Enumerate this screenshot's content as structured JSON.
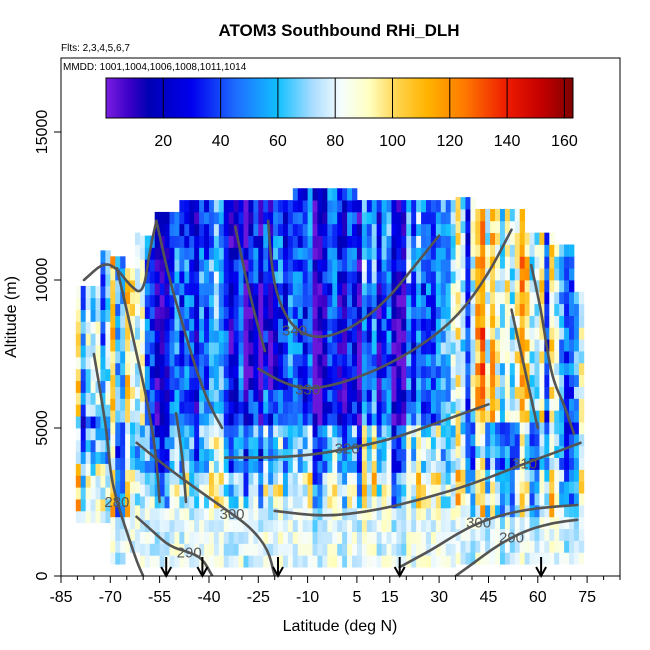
{
  "chart_data": {
    "type": "heatmap",
    "title": "ATOM3 Southbound RHi_DLH",
    "subtitle_flights": "Flts: 2,3,4,5,6,7",
    "subtitle_dates": "MMDD: 1001,1004,1006,1008,1011,1014",
    "xlabel": "Latitude (deg N)",
    "ylabel": "Altitude (m)",
    "xlim": [
      -85,
      85
    ],
    "ylim": [
      0,
      17500
    ],
    "x_ticks": [
      -85,
      -70,
      -55,
      -40,
      -25,
      -10,
      5,
      15,
      30,
      45,
      60,
      75
    ],
    "y_ticks": [
      0,
      5000,
      10000,
      15000
    ],
    "colorbar": {
      "min": 0,
      "max": 163,
      "ticks": [
        20,
        40,
        60,
        80,
        100,
        120,
        140,
        160
      ],
      "stops": [
        {
          "v": 0,
          "c": "#7a1fe0"
        },
        {
          "v": 8,
          "c": "#3d00c8"
        },
        {
          "v": 15,
          "c": "#0000b4"
        },
        {
          "v": 30,
          "c": "#0000ee"
        },
        {
          "v": 45,
          "c": "#1e6bff"
        },
        {
          "v": 60,
          "c": "#12c0ff"
        },
        {
          "v": 72,
          "c": "#a8dcff"
        },
        {
          "v": 82,
          "c": "#f6fdfd"
        },
        {
          "v": 92,
          "c": "#ffffc0"
        },
        {
          "v": 102,
          "c": "#ffd24a"
        },
        {
          "v": 112,
          "c": "#ffb400"
        },
        {
          "v": 125,
          "c": "#ff7a00"
        },
        {
          "v": 140,
          "c": "#ee1a00"
        },
        {
          "v": 152,
          "c": "#c40000"
        },
        {
          "v": 163,
          "c": "#7e0000"
        }
      ]
    },
    "contours": [
      {
        "label": "280",
        "label_at": [
          -68,
          2500
        ],
        "points": [
          [
            -75,
            7500
          ],
          [
            -73,
            6200
          ],
          [
            -71,
            4800
          ],
          [
            -70,
            3500
          ],
          [
            -68,
            2500
          ],
          [
            -65,
            1500
          ],
          [
            -62,
            500
          ],
          [
            -60,
            0
          ]
        ]
      },
      {
        "label": "290",
        "label_at": [
          -46,
          800
        ],
        "points": [
          [
            -62,
            2000
          ],
          [
            -57,
            1500
          ],
          [
            -52,
            1000
          ],
          [
            -46,
            800
          ],
          [
            -42,
            600
          ],
          [
            -39,
            0
          ]
        ]
      },
      {
        "label": "290",
        "label_at": [
          52,
          1300
        ],
        "points": [
          [
            35,
            0
          ],
          [
            40,
            400
          ],
          [
            46,
            900
          ],
          [
            52,
            1300
          ],
          [
            58,
            1600
          ],
          [
            65,
            1800
          ],
          [
            72,
            1900
          ]
        ]
      },
      {
        "label": "300",
        "label_at": [
          -33,
          2100
        ],
        "points": [
          [
            -62,
            4500
          ],
          [
            -52,
            3600
          ],
          [
            -42,
            2800
          ],
          [
            -33,
            2100
          ],
          [
            -27,
            1600
          ],
          [
            -22,
            900
          ],
          [
            -20,
            0
          ]
        ]
      },
      {
        "label": "300",
        "label_at": [
          42,
          1800
        ],
        "points": [
          [
            18,
            300
          ],
          [
            28,
            900
          ],
          [
            35,
            1400
          ],
          [
            42,
            1800
          ],
          [
            50,
            2100
          ],
          [
            60,
            2300
          ],
          [
            72,
            2400
          ]
        ]
      },
      {
        "label": "310",
        "label_at": [
          56,
          3800
        ],
        "points": [
          [
            -20,
            2200
          ],
          [
            -5,
            2000
          ],
          [
            10,
            2200
          ],
          [
            25,
            2600
          ],
          [
            40,
            3100
          ],
          [
            56,
            3800
          ],
          [
            66,
            4200
          ],
          [
            73,
            4500
          ]
        ]
      },
      {
        "label": "320",
        "label_at": [
          2,
          4300
        ],
        "points": [
          [
            -35,
            4000
          ],
          [
            -20,
            4000
          ],
          [
            -8,
            4100
          ],
          [
            2,
            4300
          ],
          [
            15,
            4600
          ],
          [
            30,
            5200
          ],
          [
            45,
            5800
          ]
        ]
      },
      {
        "label": "330",
        "label_at": [
          -10,
          6300
        ],
        "points": [
          [
            -25,
            7000
          ],
          [
            -17,
            6500
          ],
          [
            -10,
            6300
          ],
          [
            0,
            6500
          ],
          [
            12,
            7000
          ],
          [
            25,
            7800
          ],
          [
            36,
            8800
          ],
          [
            45,
            10200
          ],
          [
            52,
            11700
          ]
        ]
      },
      {
        "label": "340",
        "label_at": [
          -14,
          8300
        ],
        "points": [
          [
            -22,
            12000
          ],
          [
            -21,
            10500
          ],
          [
            -19,
            9300
          ],
          [
            -14,
            8300
          ],
          [
            -6,
            8000
          ],
          [
            4,
            8400
          ],
          [
            14,
            9300
          ],
          [
            22,
            10400
          ],
          [
            30,
            11500
          ]
        ]
      },
      {
        "label": "",
        "label_at": null,
        "points": [
          [
            -78,
            10000
          ],
          [
            -72,
            10600
          ],
          [
            -68,
            10400
          ],
          [
            -64,
            9800
          ],
          [
            -60,
            9500
          ],
          [
            -58,
            11000
          ],
          [
            -56,
            12000
          ]
        ]
      },
      {
        "label": "",
        "label_at": null,
        "points": [
          [
            -68,
            10400
          ],
          [
            -64,
            8500
          ],
          [
            -61,
            7000
          ],
          [
            -58,
            5500
          ],
          [
            -56,
            4000
          ],
          [
            -55,
            2500
          ]
        ]
      },
      {
        "label": "",
        "label_at": null,
        "points": [
          [
            -56,
            12000
          ],
          [
            -52,
            10000
          ],
          [
            -48,
            8500
          ],
          [
            -44,
            7000
          ],
          [
            -40,
            5800
          ],
          [
            -36,
            5000
          ]
        ]
      },
      {
        "label": "",
        "label_at": null,
        "points": [
          [
            -32,
            11800
          ],
          [
            -29,
            10200
          ],
          [
            -26,
            8800
          ],
          [
            -23,
            7600
          ]
        ]
      },
      {
        "label": "",
        "label_at": null,
        "points": [
          [
            58,
            10500
          ],
          [
            61,
            9000
          ],
          [
            63,
            7500
          ],
          [
            65,
            6500
          ],
          [
            68,
            5800
          ],
          [
            71,
            4800
          ]
        ]
      },
      {
        "label": "",
        "label_at": null,
        "points": [
          [
            52,
            9000
          ],
          [
            55,
            7500
          ],
          [
            58,
            6000
          ],
          [
            60,
            5000
          ]
        ]
      },
      {
        "label": "",
        "label_at": null,
        "points": [
          [
            -50,
            5500
          ],
          [
            -48,
            4000
          ],
          [
            -47,
            2500
          ]
        ]
      }
    ],
    "arrows": [
      -53,
      -42,
      -19,
      18,
      61
    ]
  }
}
